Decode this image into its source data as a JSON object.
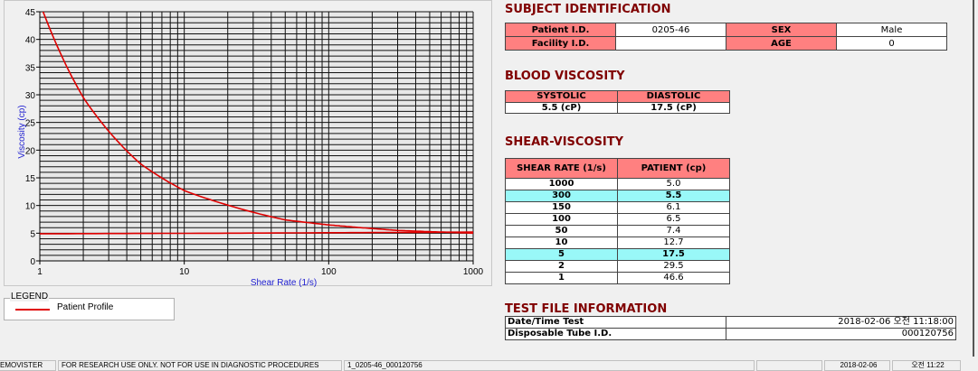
{
  "chart_data": {
    "type": "line",
    "xscale": "log",
    "xlim": [
      1,
      1000
    ],
    "ylim": [
      0,
      45
    ],
    "grid": true,
    "xlabel": "Shear Rate (1/s)",
    "ylabel": "Viscosity (cp)",
    "xticks": [
      "1",
      "10",
      "100",
      "1000"
    ],
    "yticks": [
      "0",
      "5",
      "10",
      "15",
      "20",
      "25",
      "30",
      "35",
      "40",
      "45"
    ],
    "series": [
      {
        "name": "Patient Profile",
        "color": "#e00000",
        "x": [
          1,
          2,
          5,
          10,
          50,
          100,
          150,
          300,
          1000
        ],
        "y": [
          46.6,
          29.5,
          17.5,
          12.7,
          7.4,
          6.5,
          6.1,
          5.5,
          5.0
        ]
      },
      {
        "color": "#e00000",
        "x": [
          1,
          20,
          1000
        ],
        "y": [
          4.9,
          5.0,
          5.2
        ]
      }
    ]
  },
  "legend": {
    "title": "LEGEND",
    "label": "Patient Profile"
  },
  "subject": {
    "title": "SUBJECT IDENTIFICATION",
    "patient_id_label": "Patient I.D.",
    "patient_id": "0205-46",
    "sex_label": "SEX",
    "sex": "Male",
    "facility_label": "Facility I.D.",
    "facility": "",
    "age_label": "AGE",
    "age": "0"
  },
  "blood": {
    "title": "BLOOD VISCOSITY",
    "systolic_label": "SYSTOLIC",
    "diastolic_label": "DIASTOLIC",
    "systolic": "5.5 (cP)",
    "diastolic": "17.5 (cP)"
  },
  "shear": {
    "title": "SHEAR-VISCOSITY",
    "col1": "SHEAR RATE (1/s)",
    "col2": "PATIENT (cp)",
    "rows": [
      [
        "1000",
        "5.0",
        false
      ],
      [
        "300",
        "5.5",
        true
      ],
      [
        "150",
        "6.1",
        false
      ],
      [
        "100",
        "6.5",
        false
      ],
      [
        "50",
        "7.4",
        false
      ],
      [
        "10",
        "12.7",
        false
      ],
      [
        "5",
        "17.5",
        true
      ],
      [
        "2",
        "29.5",
        false
      ],
      [
        "1",
        "46.6",
        false
      ]
    ]
  },
  "testfile": {
    "title": "TEST FILE INFORMATION",
    "date_label": "Date/Time Test",
    "date": "2018-02-06   오전 11:18:00",
    "tube_label": "Disposable Tube I.D.",
    "tube": "000120756"
  },
  "status": {
    "app": "EMOVISTER",
    "notice": "FOR RESEARCH USE ONLY. NOT FOR USE IN DIAGNOSTIC PROCEDURES",
    "file": "1_0205-46_000120756",
    "blank": "",
    "date": "2018-02-06",
    "time": "오전 11:22"
  }
}
